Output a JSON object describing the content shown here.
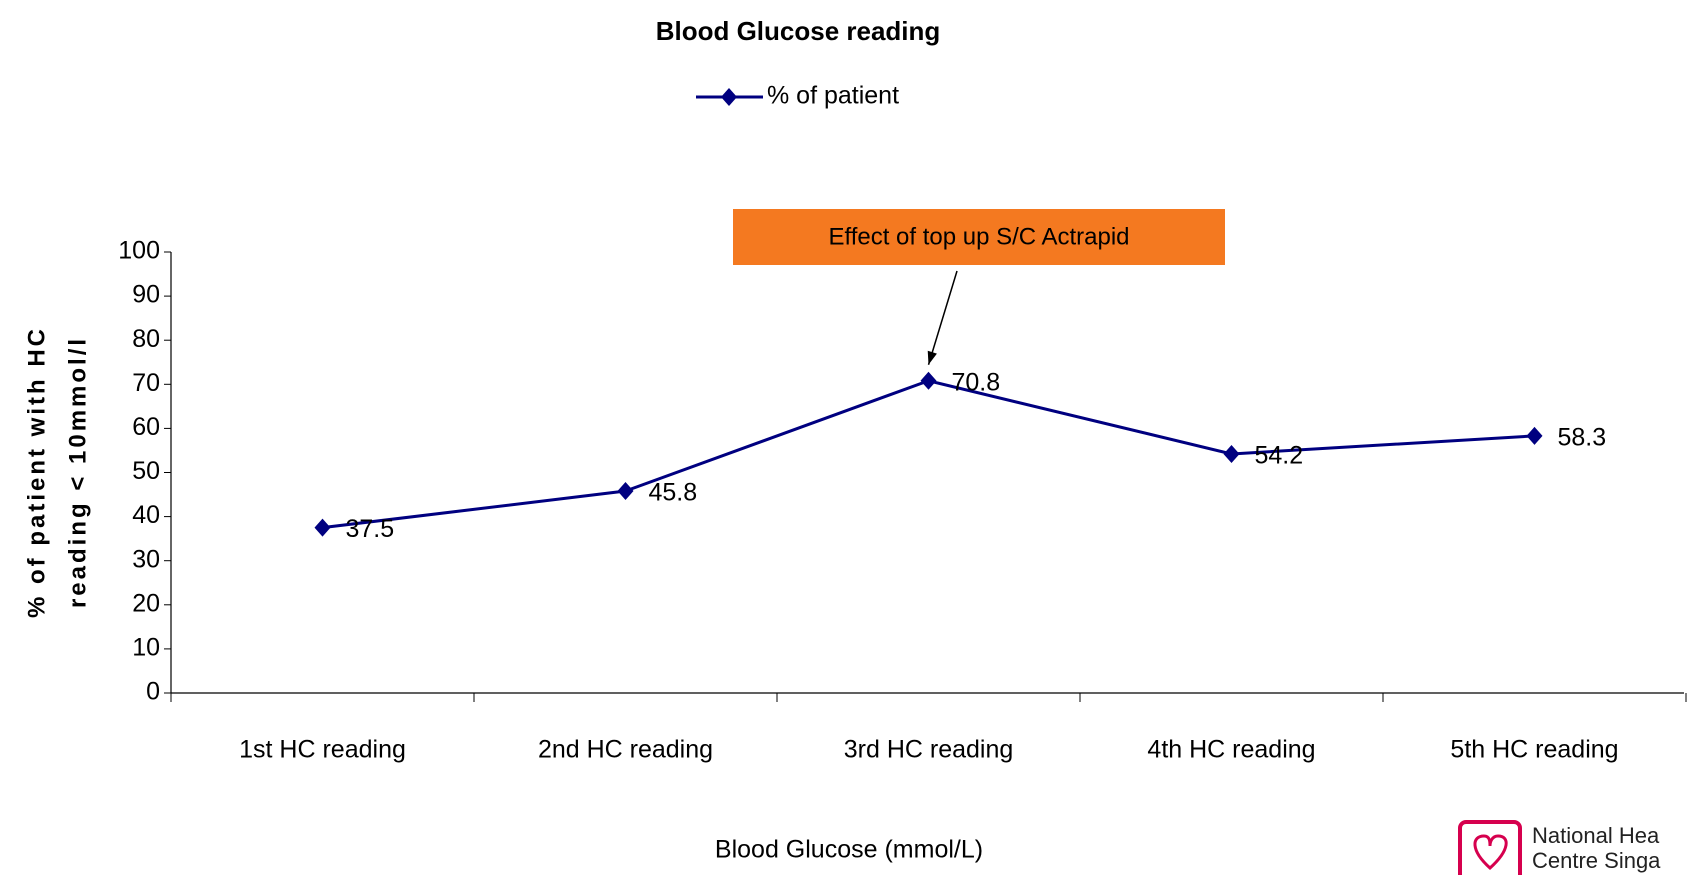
{
  "chart_data": {
    "type": "line",
    "title": "Blood Glucose reading",
    "x_label": "Blood Glucose (mmol/L)",
    "y_label": [
      "% of patient with HC",
      "reading < 10mmol/l"
    ],
    "categories": [
      "1st HC reading",
      "2nd HC reading",
      "3rd HC reading",
      "4th HC reading",
      "5th HC reading"
    ],
    "series": [
      {
        "name": "% of patient",
        "color": "#000080",
        "values": [
          37.5,
          45.8,
          70.8,
          54.2,
          58.3
        ]
      }
    ],
    "ylim": [
      0,
      100
    ],
    "yticks": [
      0,
      10,
      20,
      30,
      40,
      50,
      60,
      70,
      80,
      90,
      100
    ],
    "grid": false,
    "legend": "top",
    "annotation": {
      "text": "Effect of top up S/C Actrapid",
      "category_index": 2,
      "color": "#f47920"
    }
  },
  "logo": {
    "lines": [
      "National Hea",
      "Centre Singa"
    ]
  }
}
